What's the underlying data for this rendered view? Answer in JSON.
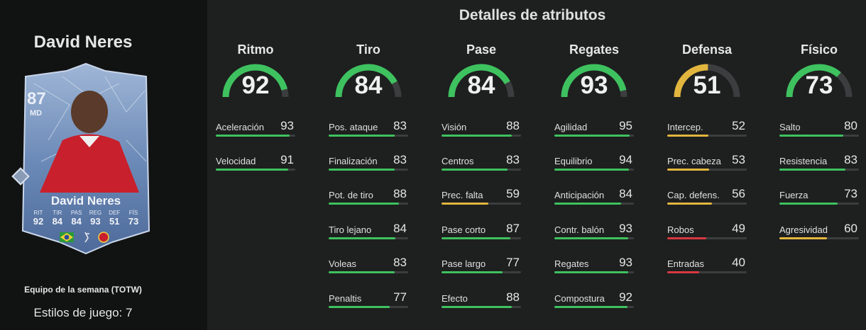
{
  "page_title": "Detalles de atributos",
  "player": {
    "name": "David Neres",
    "card": {
      "rating": "87",
      "position": "MD",
      "name": "David Neres",
      "stats": [
        {
          "label": "RIT",
          "value": "92"
        },
        {
          "label": "TIR",
          "value": "84"
        },
        {
          "label": "PAS",
          "value": "84"
        },
        {
          "label": "REG",
          "value": "93"
        },
        {
          "label": "DEF",
          "value": "51"
        },
        {
          "label": "FÍS",
          "value": "73"
        }
      ]
    },
    "card_type": "Equipo de la semana (TOTW)",
    "playstyles": "Estilos de juego: 7"
  },
  "colors": {
    "high": "#3ec25f",
    "mid": "#e2b63e",
    "low": "#d9383f",
    "track": "#3c3d3e"
  },
  "categories": [
    {
      "name": "Ritmo",
      "value": "92",
      "attributes": [
        {
          "name": "Aceleración",
          "value": "93"
        },
        {
          "name": "Velocidad",
          "value": "91"
        }
      ]
    },
    {
      "name": "Tiro",
      "value": "84",
      "attributes": [
        {
          "name": "Pos. ataque",
          "value": "83"
        },
        {
          "name": "Finalización",
          "value": "83"
        },
        {
          "name": "Pot. de tiro",
          "value": "88"
        },
        {
          "name": "Tiro lejano",
          "value": "84"
        },
        {
          "name": "Voleas",
          "value": "83"
        },
        {
          "name": "Penaltis",
          "value": "77"
        }
      ]
    },
    {
      "name": "Pase",
      "value": "84",
      "attributes": [
        {
          "name": "Visión",
          "value": "88"
        },
        {
          "name": "Centros",
          "value": "83"
        },
        {
          "name": "Prec. falta",
          "value": "59"
        },
        {
          "name": "Pase corto",
          "value": "87"
        },
        {
          "name": "Pase largo",
          "value": "77"
        },
        {
          "name": "Efecto",
          "value": "88"
        }
      ]
    },
    {
      "name": "Regates",
      "value": "93",
      "attributes": [
        {
          "name": "Agilidad",
          "value": "95"
        },
        {
          "name": "Equilibrio",
          "value": "94"
        },
        {
          "name": "Anticipación",
          "value": "84"
        },
        {
          "name": "Contr. balón",
          "value": "93"
        },
        {
          "name": "Regates",
          "value": "93"
        },
        {
          "name": "Compostura",
          "value": "92"
        }
      ]
    },
    {
      "name": "Defensa",
      "value": "51",
      "attributes": [
        {
          "name": "Intercep.",
          "value": "52"
        },
        {
          "name": "Prec. cabeza",
          "value": "53"
        },
        {
          "name": "Cap. defens.",
          "value": "56"
        },
        {
          "name": "Robos",
          "value": "49"
        },
        {
          "name": "Entradas",
          "value": "40"
        }
      ]
    },
    {
      "name": "Físico",
      "value": "73",
      "attributes": [
        {
          "name": "Salto",
          "value": "80"
        },
        {
          "name": "Resistencia",
          "value": "83"
        },
        {
          "name": "Fuerza",
          "value": "73"
        },
        {
          "name": "Agresividad",
          "value": "60"
        }
      ]
    }
  ]
}
